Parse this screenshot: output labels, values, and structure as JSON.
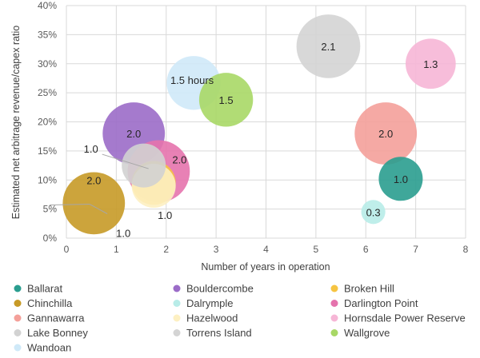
{
  "chart_data": {
    "type": "bubble",
    "xlabel": "Number of years in operation",
    "ylabel": "Estimated net arbitrage revenue/capex ratio",
    "xlim": [
      0,
      8
    ],
    "ylim": [
      0,
      40
    ],
    "x_ticks": [
      "0",
      "1",
      "2",
      "3",
      "4",
      "5",
      "6",
      "7",
      "8"
    ],
    "y_ticks": [
      "0%",
      "5%",
      "10%",
      "15%",
      "20%",
      "25%",
      "30%",
      "35%",
      "40%"
    ],
    "grid": true,
    "legend_position": "bottom",
    "series": [
      {
        "name": "Ballarat",
        "color": "#2a9d8f",
        "x": 6.7,
        "y": 10.2,
        "size": 1.0,
        "label": "1.0"
      },
      {
        "name": "Bouldercombe",
        "color": "#9b6cc8",
        "x": 1.35,
        "y": 18.0,
        "size": 2.0,
        "label": "2.0"
      },
      {
        "name": "Broken Hill",
        "color": "#f6c441",
        "x": 1.75,
        "y": 9.5,
        "size": 1.0,
        "label": "1.0"
      },
      {
        "name": "Chinchilla",
        "color": "#c79a27",
        "x": 0.55,
        "y": 6.0,
        "size": 2.0,
        "label": "2.0"
      },
      {
        "name": "Dalrymple",
        "color": "#b8ece8",
        "x": 6.15,
        "y": 4.5,
        "size": 0.3,
        "label": "0.3"
      },
      {
        "name": "Darlington Point",
        "color": "#e573ad",
        "x": 1.85,
        "y": 11.5,
        "size": 2.0,
        "label": "2.0"
      },
      {
        "name": "Gannawarra",
        "color": "#f4a09a",
        "x": 6.4,
        "y": 18.0,
        "size": 2.0,
        "label": "2.0"
      },
      {
        "name": "Hazelwood",
        "color": "#fdf0c2",
        "x": 1.75,
        "y": 9.0,
        "size": 1.0,
        "label": "1.0"
      },
      {
        "name": "Hornsdale Power Reserve",
        "color": "#f6b6d6",
        "x": 7.3,
        "y": 30.0,
        "size": 1.3,
        "label": "1.3"
      },
      {
        "name": "Lake Bonney",
        "color": "#d2d2d2",
        "x": 1.55,
        "y": 12.5,
        "size": 1.0,
        "label": "1.0"
      },
      {
        "name": "Torrens Island",
        "color": "#d4d4d4",
        "x": 5.25,
        "y": 33.0,
        "size": 2.1,
        "label": "2.1"
      },
      {
        "name": "Wallgrove",
        "color": "#a8d866",
        "x": 3.2,
        "y": 23.8,
        "size": 1.5,
        "label": "1.5"
      },
      {
        "name": "Wandoan",
        "color": "#cfe9f8",
        "x": 2.55,
        "y": 26.7,
        "size": 1.5,
        "label": "1.5 hours"
      }
    ]
  }
}
